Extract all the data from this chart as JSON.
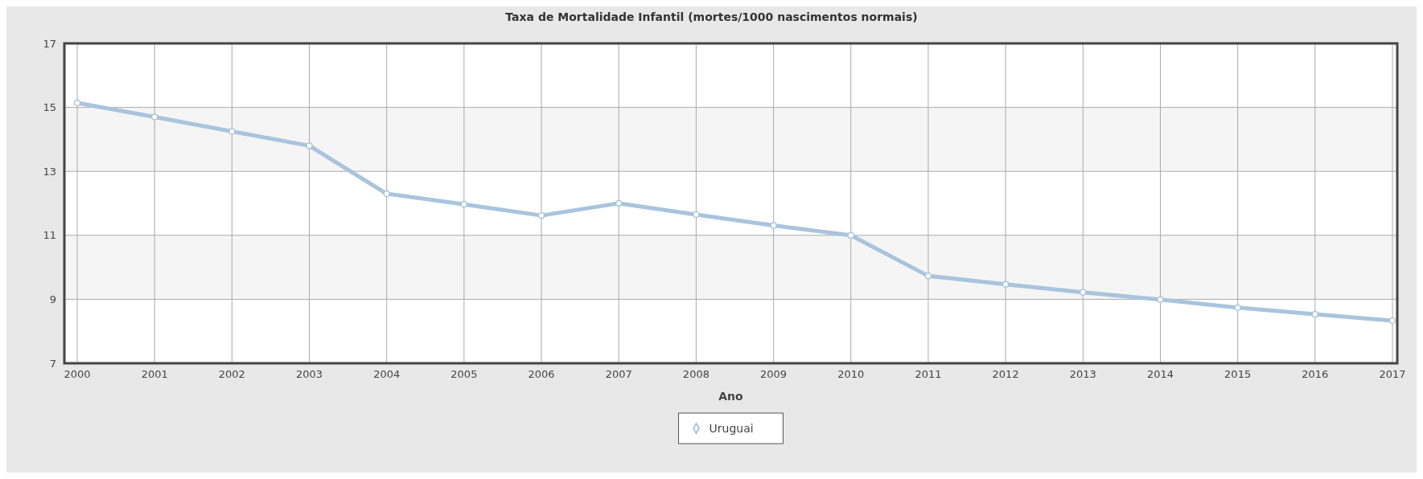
{
  "chart_data": {
    "type": "line",
    "title": "Taxa de Mortalidade Infantil (mortes/1000 nascimentos normais)",
    "xlabel": "Ano",
    "categories": [
      "2000",
      "2001",
      "2002",
      "2003",
      "2004",
      "2005",
      "2006",
      "2007",
      "2008",
      "2009",
      "2010",
      "2011",
      "2012",
      "2013",
      "2014",
      "2015",
      "2016",
      "2017"
    ],
    "series": [
      {
        "name": "Uruguai",
        "color": "#a9c4dc",
        "values": [
          15.14,
          14.7,
          14.25,
          13.8,
          12.3,
          11.97,
          11.62,
          12.0,
          11.65,
          11.31,
          11.0,
          9.73,
          9.47,
          9.22,
          8.99,
          8.74,
          8.53,
          8.33
        ]
      }
    ],
    "ylim": [
      7,
      17
    ],
    "yticks": [
      7,
      9,
      11,
      13,
      15,
      17
    ],
    "grid": true,
    "legend": "bottom",
    "marker": "circle"
  }
}
